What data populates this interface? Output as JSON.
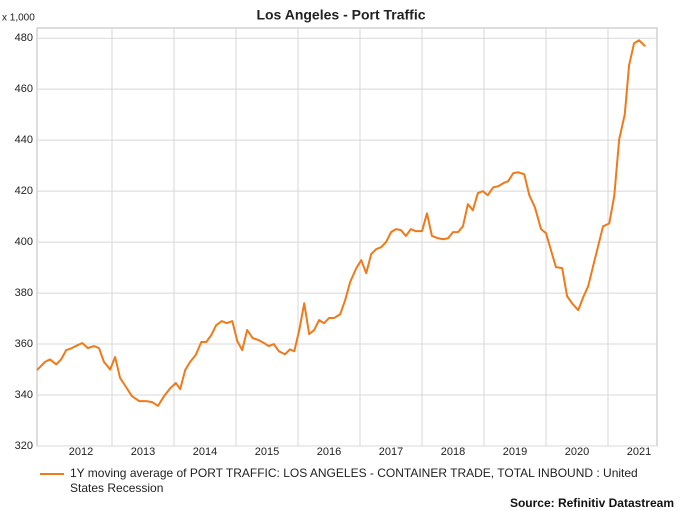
{
  "chart_data": {
    "type": "line",
    "title": "Los Angeles - Port Traffic",
    "y_unit_label": "x 1,000",
    "source": "Source: Refinitiv Datastream",
    "x": [
      2011.79,
      2011.92,
      2012.0,
      2012.1,
      2012.18,
      2012.26,
      2012.35,
      2012.45,
      2012.52,
      2012.61,
      2012.71,
      2012.79,
      2012.87,
      2012.97,
      2013.05,
      2013.13,
      2013.23,
      2013.32,
      2013.44,
      2013.55,
      2013.65,
      2013.74,
      2013.84,
      2013.94,
      2014.03,
      2014.1,
      2014.18,
      2014.26,
      2014.35,
      2014.44,
      2014.52,
      2014.6,
      2014.68,
      2014.77,
      2014.85,
      2014.94,
      2015.02,
      2015.1,
      2015.18,
      2015.27,
      2015.37,
      2015.45,
      2015.53,
      2015.61,
      2015.69,
      2015.79,
      2015.87,
      2015.94,
      2016.02,
      2016.1,
      2016.18,
      2016.26,
      2016.34,
      2016.42,
      2016.5,
      2016.58,
      2016.68,
      2016.76,
      2016.84,
      2016.94,
      2017.02,
      2017.1,
      2017.18,
      2017.26,
      2017.34,
      2017.42,
      2017.5,
      2017.58,
      2017.66,
      2017.74,
      2017.82,
      2017.9,
      2018.0,
      2018.08,
      2018.16,
      2018.26,
      2018.34,
      2018.42,
      2018.5,
      2018.58,
      2018.66,
      2018.74,
      2018.82,
      2018.9,
      2018.98,
      2019.06,
      2019.15,
      2019.23,
      2019.31,
      2019.39,
      2019.47,
      2019.55,
      2019.65,
      2019.73,
      2019.82,
      2019.92,
      2020.0,
      2020.08,
      2020.16,
      2020.26,
      2020.34,
      2020.42,
      2020.52,
      2020.6,
      2020.68,
      2020.76,
      2020.84,
      2020.92,
      2021.02,
      2021.1,
      2021.18,
      2021.27,
      2021.34,
      2021.42,
      2021.5,
      2021.6
    ],
    "series": [
      {
        "name": "1Y moving average of PORT TRAFFIC: LOS ANGELES - CONTAINER TRADE, TOTAL INBOUND : United States Recession",
        "color": "#f07a1a",
        "values": [
          349.8,
          353,
          354,
          352,
          354,
          357.6,
          358.4,
          359.6,
          360.4,
          358.4,
          359.2,
          358.4,
          353,
          350,
          354.9,
          346.7,
          343,
          339.6,
          337.6,
          337.6,
          337.2,
          335.7,
          339.6,
          342.7,
          344.7,
          342.3,
          349.8,
          353,
          355.7,
          360.8,
          360.8,
          363.5,
          367.4,
          369,
          368.2,
          369,
          361.2,
          357.6,
          365.5,
          362.3,
          361.5,
          360.4,
          359.2,
          360,
          357.2,
          356,
          357.9,
          357.2,
          365.5,
          376,
          363.9,
          365.5,
          369.4,
          368.2,
          370.2,
          370.2,
          371.7,
          377.2,
          384.3,
          389.8,
          392.9,
          387.8,
          395.3,
          397.2,
          398,
          400,
          403.9,
          405.1,
          404.7,
          402.4,
          405.1,
          404.3,
          404.3,
          411.3,
          402.4,
          401.5,
          401.1,
          401.5,
          403.9,
          403.9,
          406.2,
          414.9,
          412.5,
          419.2,
          420,
          418.4,
          421.5,
          421.9,
          423.1,
          423.9,
          427,
          427.4,
          426.6,
          418.4,
          413.7,
          405.1,
          403.5,
          396.8,
          390.2,
          389.8,
          378.8,
          376,
          373.3,
          378.4,
          382.7,
          390.6,
          398.4,
          406.2,
          407.3,
          418,
          440.3,
          450.1,
          469.4,
          478,
          479.2,
          476.8
        ]
      }
    ],
    "xlim": [
      2011.79,
      2021.79
    ],
    "xticks": [
      {
        "value": 2012.5,
        "label": "2012"
      },
      {
        "value": 2013.5,
        "label": "2013"
      },
      {
        "value": 2014.5,
        "label": "2014"
      },
      {
        "value": 2015.5,
        "label": "2015"
      },
      {
        "value": 2016.5,
        "label": "2016"
      },
      {
        "value": 2017.5,
        "label": "2017"
      },
      {
        "value": 2018.5,
        "label": "2018"
      },
      {
        "value": 2019.5,
        "label": "2019"
      },
      {
        "value": 2020.5,
        "label": "2020"
      },
      {
        "value": 2021.5,
        "label": "2021"
      }
    ],
    "xgrid": [
      2013,
      2014,
      2015,
      2016,
      2017,
      2018,
      2019,
      2020,
      2021
    ],
    "ylim": [
      320,
      484
    ],
    "yticks": [
      320,
      340,
      360,
      380,
      400,
      420,
      440,
      460,
      480
    ],
    "grid": true
  }
}
